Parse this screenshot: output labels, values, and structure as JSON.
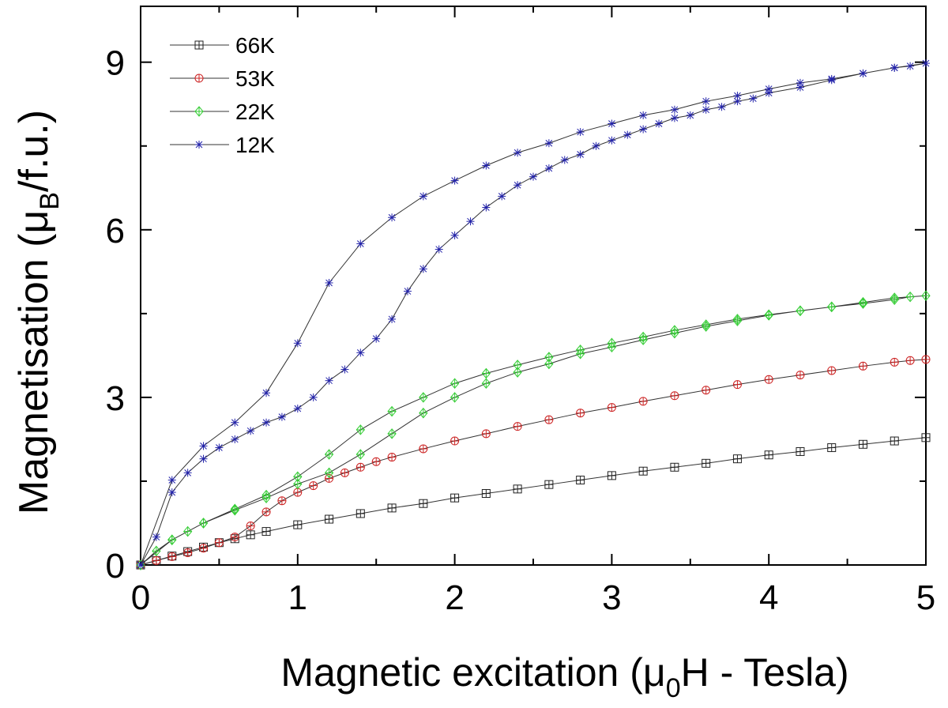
{
  "chart_data": {
    "type": "line",
    "x_label": [
      "Magnetic excitation (μ",
      "0",
      "H - Tesla)"
    ],
    "y_label": [
      "Magnetisation (μ",
      "B",
      "/f.u.)"
    ],
    "xlim": [
      0,
      5
    ],
    "xticks": [
      0,
      1,
      2,
      3,
      4,
      5
    ],
    "xminorticks": [
      0.5,
      1.5,
      2.5,
      3.5,
      4.5
    ],
    "ylim": [
      0,
      10
    ],
    "yticks": [
      0,
      3,
      6,
      9
    ],
    "yminorticks": [
      1.5,
      4.5,
      7.5
    ],
    "legend": "upper left",
    "line_color": "#333333",
    "series": [
      {
        "name": "66K",
        "color": "#222222",
        "marker": "square-plus",
        "x": [
          0,
          0.1,
          0.2,
          0.3,
          0.4,
          0.5,
          0.6,
          0.7,
          0.8,
          1.0,
          1.2,
          1.4,
          1.6,
          1.8,
          2.0,
          2.2,
          2.4,
          2.6,
          2.8,
          3.0,
          3.2,
          3.4,
          3.6,
          3.8,
          4.0,
          4.2,
          4.4,
          4.6,
          4.8,
          5.0
        ],
        "values": [
          0,
          0.08,
          0.16,
          0.24,
          0.32,
          0.4,
          0.47,
          0.54,
          0.6,
          0.72,
          0.82,
          0.92,
          1.02,
          1.1,
          1.2,
          1.28,
          1.36,
          1.44,
          1.52,
          1.6,
          1.68,
          1.75,
          1.82,
          1.9,
          1.97,
          2.03,
          2.1,
          2.16,
          2.22,
          2.28
        ]
      },
      {
        "name": "53K",
        "color": "#cc2222",
        "marker": "circle-plus",
        "x": [
          0,
          0.1,
          0.2,
          0.3,
          0.4,
          0.5,
          0.6,
          0.7,
          0.8,
          0.9,
          1.0,
          1.1,
          1.2,
          1.3,
          1.4,
          1.5,
          1.6,
          1.8,
          2.0,
          2.2,
          2.4,
          2.6,
          2.8,
          3.0,
          3.2,
          3.4,
          3.6,
          3.8,
          4.0,
          4.2,
          4.4,
          4.6,
          4.8,
          4.9,
          5.0
        ],
        "values": [
          0,
          0.08,
          0.15,
          0.22,
          0.3,
          0.4,
          0.5,
          0.7,
          0.95,
          1.15,
          1.3,
          1.42,
          1.55,
          1.65,
          1.75,
          1.85,
          1.93,
          2.08,
          2.22,
          2.35,
          2.48,
          2.6,
          2.72,
          2.82,
          2.93,
          3.03,
          3.13,
          3.23,
          3.32,
          3.4,
          3.48,
          3.56,
          3.63,
          3.66,
          3.68
        ]
      },
      {
        "name": "22K",
        "color": "#33cc33",
        "marker": "diamond-plus",
        "x": [
          0,
          0.1,
          0.2,
          0.3,
          0.4,
          0.6,
          0.8,
          1.0,
          1.2,
          1.4,
          1.6,
          1.8,
          2.0,
          2.2,
          2.4,
          2.6,
          2.8,
          3.0,
          3.2,
          3.4,
          3.6,
          3.8,
          4.0,
          4.2,
          4.4,
          4.6,
          4.8,
          4.9,
          5.0,
          4.8,
          4.6,
          4.4,
          4.2,
          4.0,
          3.8,
          3.6,
          3.4,
          3.2,
          3.0,
          2.8,
          2.6,
          2.4,
          2.2,
          2.0,
          1.8,
          1.6,
          1.4,
          1.2,
          1.0,
          0.8,
          0.6,
          0.4,
          0.2,
          0
        ],
        "values": [
          0,
          0.25,
          0.45,
          0.6,
          0.75,
          0.98,
          1.2,
          1.45,
          1.65,
          1.98,
          2.35,
          2.72,
          3.0,
          3.25,
          3.45,
          3.6,
          3.78,
          3.9,
          4.03,
          4.15,
          4.27,
          4.37,
          4.47,
          4.55,
          4.62,
          4.68,
          4.75,
          4.8,
          4.82,
          4.78,
          4.7,
          4.62,
          4.55,
          4.48,
          4.4,
          4.3,
          4.2,
          4.08,
          3.97,
          3.85,
          3.72,
          3.58,
          3.43,
          3.25,
          3.0,
          2.75,
          2.42,
          1.98,
          1.58,
          1.25,
          1.0,
          0.75,
          0.45,
          0
        ]
      },
      {
        "name": "12K",
        "color": "#2222aa",
        "marker": "star",
        "x": [
          0,
          0.1,
          0.2,
          0.3,
          0.4,
          0.5,
          0.6,
          0.7,
          0.8,
          0.9,
          1.0,
          1.1,
          1.2,
          1.3,
          1.4,
          1.5,
          1.6,
          1.7,
          1.8,
          1.9,
          2.0,
          2.1,
          2.2,
          2.3,
          2.4,
          2.5,
          2.6,
          2.7,
          2.8,
          2.9,
          3.0,
          3.1,
          3.2,
          3.3,
          3.4,
          3.5,
          3.6,
          3.7,
          3.8,
          3.9,
          4.0,
          4.2,
          4.4,
          4.6,
          4.8,
          4.9,
          5.0,
          4.8,
          4.6,
          4.4,
          4.2,
          4.0,
          3.8,
          3.6,
          3.4,
          3.2,
          3.0,
          2.8,
          2.6,
          2.4,
          2.2,
          2.0,
          1.8,
          1.6,
          1.4,
          1.2,
          1.0,
          0.8,
          0.6,
          0.4,
          0.2,
          0
        ],
        "values": [
          0,
          0.5,
          1.3,
          1.65,
          1.9,
          2.1,
          2.25,
          2.4,
          2.55,
          2.65,
          2.8,
          3.0,
          3.3,
          3.5,
          3.8,
          4.05,
          4.4,
          4.9,
          5.3,
          5.65,
          5.9,
          6.15,
          6.4,
          6.6,
          6.8,
          6.95,
          7.1,
          7.25,
          7.35,
          7.5,
          7.6,
          7.7,
          7.8,
          7.9,
          8.0,
          8.05,
          8.15,
          8.2,
          8.3,
          8.35,
          8.45,
          8.55,
          8.68,
          8.8,
          8.9,
          8.93,
          8.98,
          8.9,
          8.8,
          8.7,
          8.63,
          8.52,
          8.4,
          8.3,
          8.15,
          8.05,
          7.9,
          7.75,
          7.55,
          7.38,
          7.15,
          6.88,
          6.6,
          6.22,
          5.75,
          5.05,
          3.97,
          3.08,
          2.55,
          2.13,
          1.52,
          0
        ]
      }
    ]
  }
}
